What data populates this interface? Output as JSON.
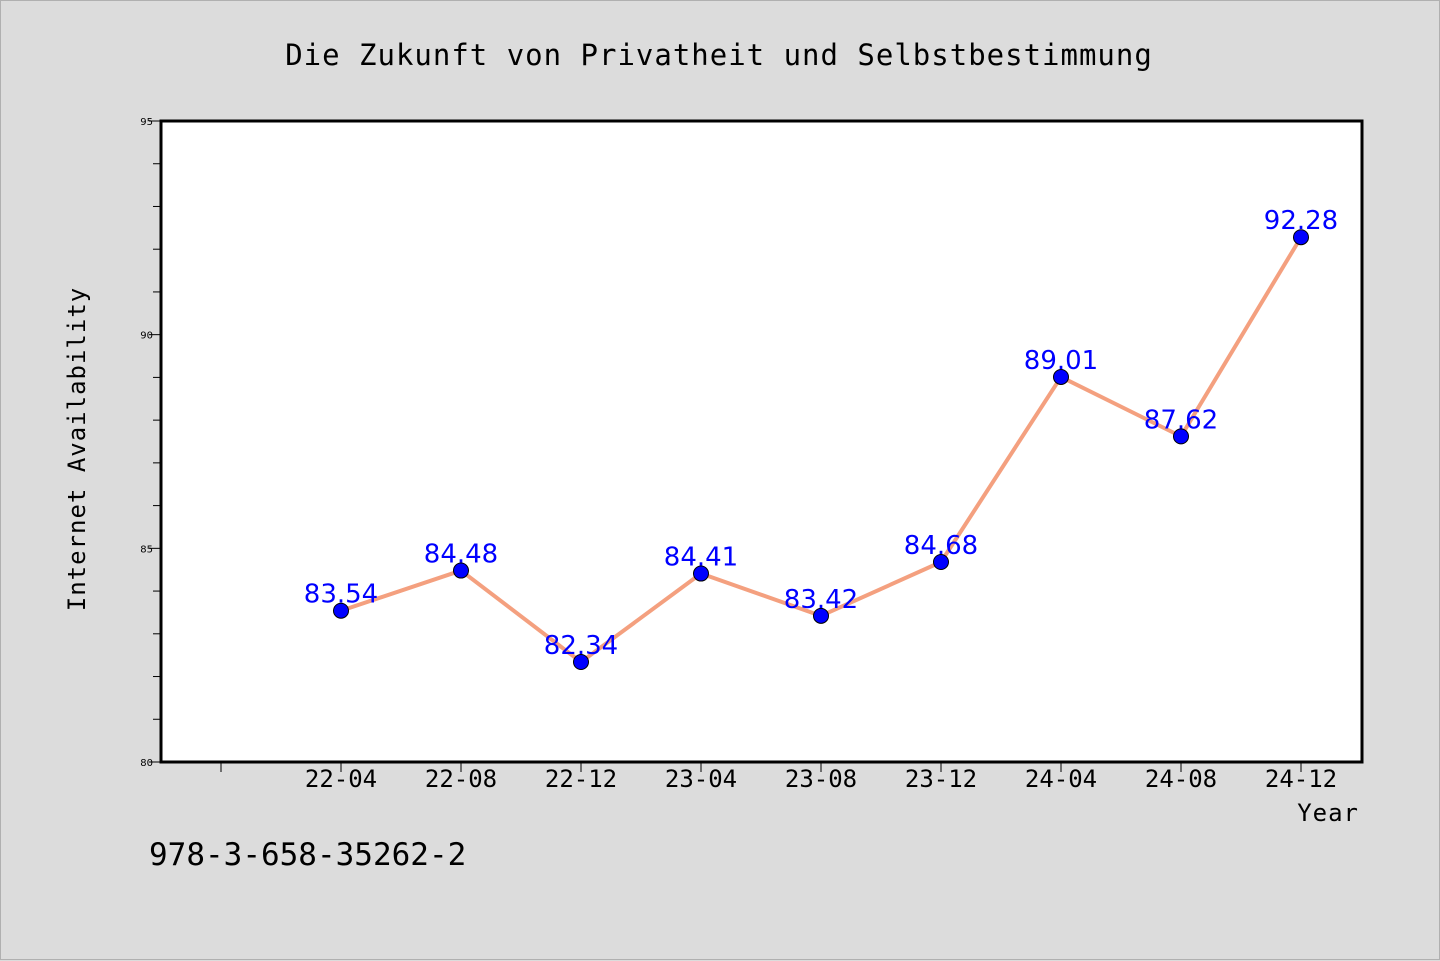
{
  "chart_data": {
    "type": "line",
    "title": "Die Zukunft von Privatheit und Selbstbestimmung",
    "xlabel": "Year",
    "ylabel": "Internet Availability",
    "categories": [
      "22-04",
      "22-08",
      "22-12",
      "23-04",
      "23-08",
      "23-12",
      "24-04",
      "24-08",
      "24-12"
    ],
    "values": [
      83.54,
      84.48,
      82.34,
      84.41,
      83.42,
      84.68,
      89.01,
      87.62,
      92.28
    ],
    "data_labels": [
      "83.54",
      "84.48",
      "82.34",
      "84.41",
      "83.42",
      "84.68",
      "89.01",
      "87.62",
      "92.28"
    ],
    "ylim": [
      80,
      95
    ],
    "y_ticks": [
      80,
      85,
      90,
      95
    ],
    "grid": false,
    "line_color": "#f4a07f",
    "marker_color": "#0000ff",
    "label_color": "#0000ff"
  },
  "footer": {
    "text": "978-3-658-35262-2"
  }
}
